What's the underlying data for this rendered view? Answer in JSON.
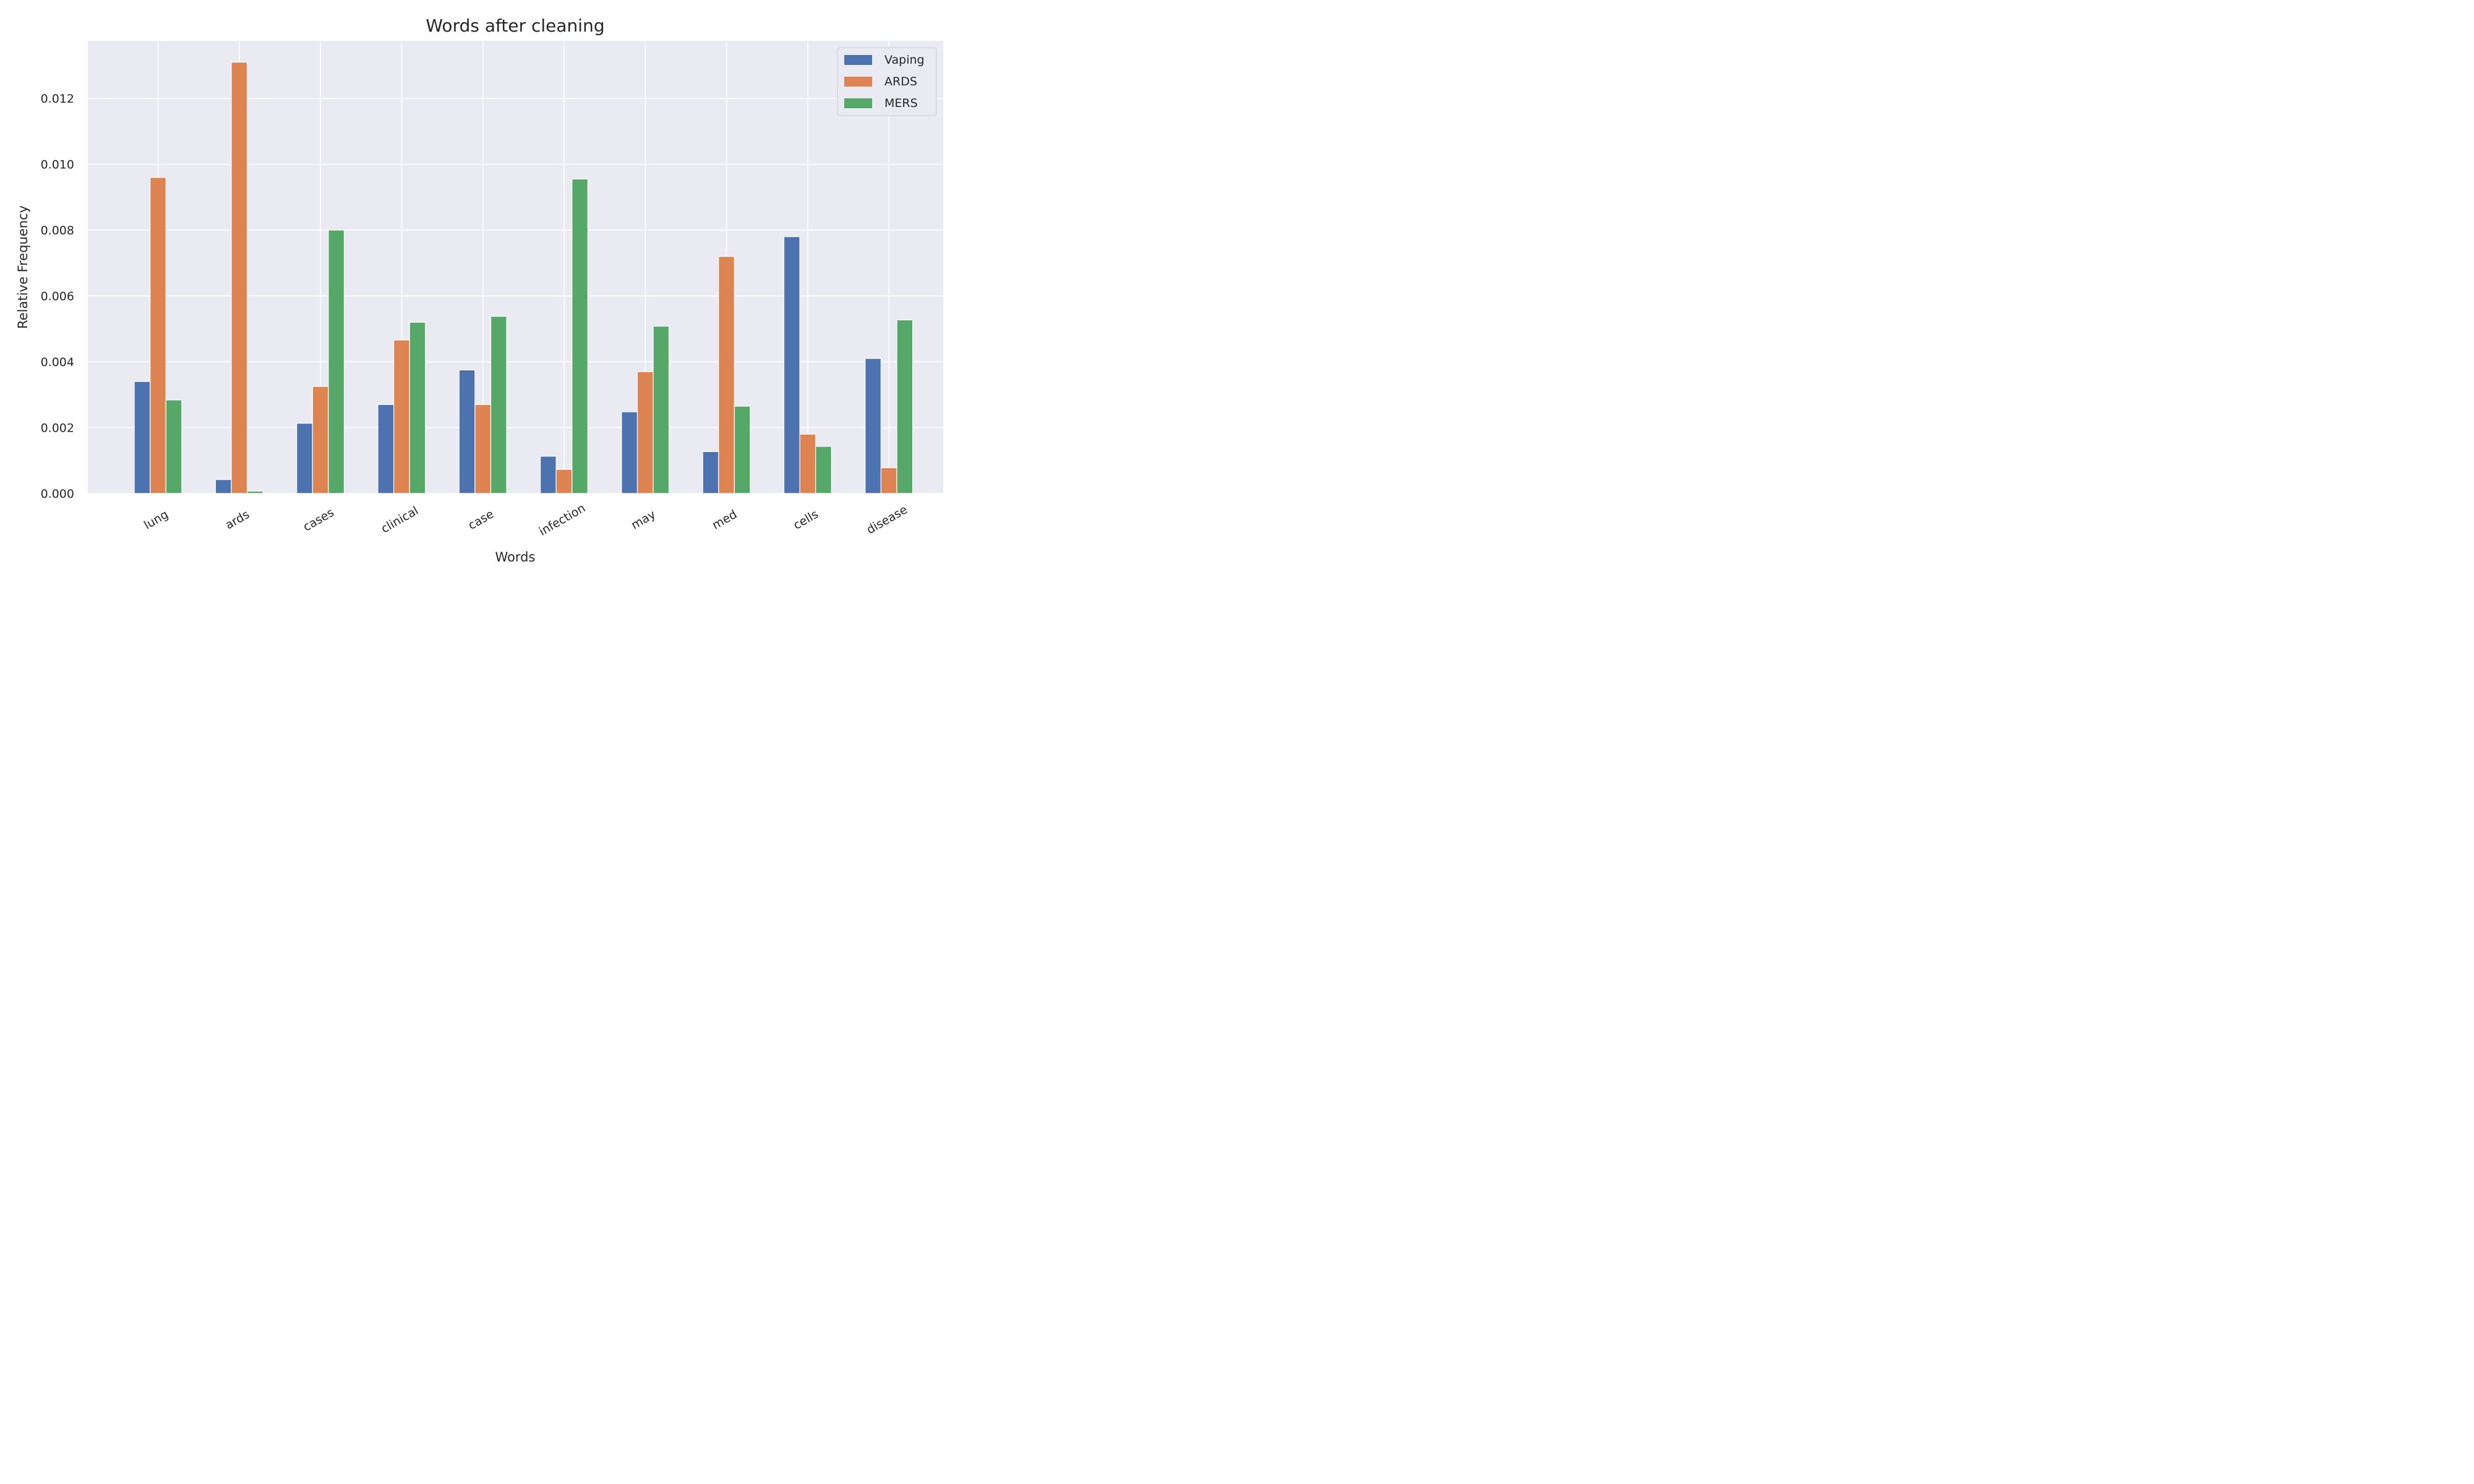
{
  "chart_data": {
    "type": "bar",
    "title": "Words after cleaning",
    "xlabel": "Words",
    "ylabel": "Relative Frequency",
    "categories": [
      "lung",
      "ards",
      "cases",
      "clinical",
      "case",
      "infection",
      "may",
      "med",
      "cells",
      "disease"
    ],
    "series": [
      {
        "name": "Vaping",
        "color": "#4c72b0",
        "values": [
          0.0034,
          0.00042,
          0.00213,
          0.0027,
          0.00375,
          0.00113,
          0.00248,
          0.00127,
          0.0078,
          0.0041
        ]
      },
      {
        "name": "ARDS",
        "color": "#dd8452",
        "values": [
          0.0096,
          0.0131,
          0.00325,
          0.00466,
          0.0027,
          0.00073,
          0.0037,
          0.0072,
          0.0018,
          0.00078
        ]
      },
      {
        "name": "MERS",
        "color": "#55a868",
        "values": [
          0.00284,
          7e-05,
          0.008,
          0.0052,
          0.00538,
          0.00955,
          0.00508,
          0.00265,
          0.00143,
          0.00527
        ]
      }
    ],
    "yticks": [
      "0.000",
      "0.002",
      "0.004",
      "0.006",
      "0.008",
      "0.010",
      "0.012"
    ],
    "ylim": [
      0,
      0.01375
    ],
    "grid": true,
    "legend_position": "top-right",
    "background": "#eaeaf2"
  }
}
